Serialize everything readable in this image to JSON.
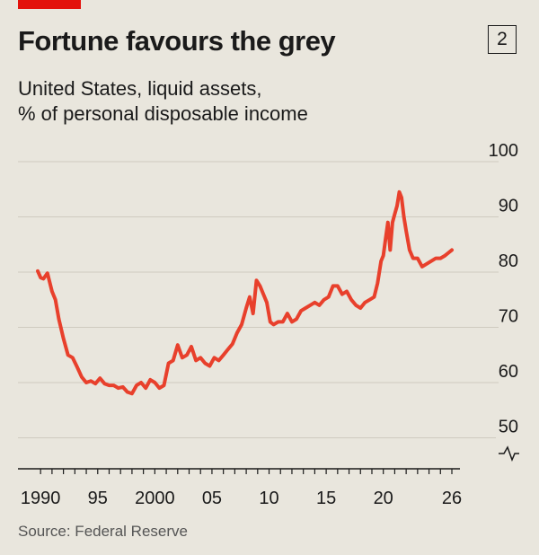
{
  "header": {
    "title": "Fortune favours the grey",
    "badge": "2",
    "subtitle_line1": "United States, liquid assets,",
    "subtitle_line2": "% of personal disposable income"
  },
  "footer": {
    "source": "Source: Federal Reserve"
  },
  "colors": {
    "accent": "#e3120b",
    "line": "#e8402c",
    "background": "#e9e6dd",
    "grid": "#cfcbc0"
  },
  "chart_data": {
    "type": "line",
    "title": "Fortune favours the grey",
    "subtitle": "United States, liquid assets, % of personal disposable income",
    "xlabel": "",
    "ylabel": "",
    "xlim": [
      1989.5,
      2026.3
    ],
    "ylim": [
      45,
      100
    ],
    "y_axis_break": true,
    "y_axis_side": "right",
    "grid": "horizontal",
    "yticks": [
      100,
      90,
      80,
      70,
      60,
      50
    ],
    "xticks": [
      {
        "value": 1990,
        "label": "1990"
      },
      {
        "value": 1995,
        "label": "95"
      },
      {
        "value": 2000,
        "label": "2000"
      },
      {
        "value": 2005,
        "label": "05"
      },
      {
        "value": 2010,
        "label": "10"
      },
      {
        "value": 2015,
        "label": "15"
      },
      {
        "value": 2020,
        "label": "20"
      },
      {
        "value": 2026,
        "label": "26"
      }
    ],
    "series": [
      {
        "x": [
          1989.75,
          1990.0,
          1990.25,
          1990.6,
          1991.0,
          1991.3,
          1991.6,
          1992.0,
          1992.4,
          1992.8,
          1993.2,
          1993.6,
          1994.0,
          1994.4,
          1994.8,
          1995.2,
          1995.6,
          1996.0,
          1996.4,
          1996.8,
          1997.2,
          1997.6,
          1998.0,
          1998.4,
          1998.8,
          1999.2,
          1999.6,
          2000.0,
          2000.4,
          2000.8,
          2001.2,
          2001.6,
          2002.0,
          2002.4,
          2002.8,
          2003.2,
          2003.6,
          2004.0,
          2004.4,
          2004.8,
          2005.2,
          2005.6,
          2006.0,
          2006.4,
          2006.8,
          2007.2,
          2007.6,
          2008.0,
          2008.3,
          2008.6,
          2008.9,
          2009.2,
          2009.5,
          2009.8,
          2010.1,
          2010.4,
          2010.8,
          2011.2,
          2011.6,
          2012.0,
          2012.4,
          2012.8,
          2013.2,
          2013.6,
          2014.0,
          2014.4,
          2014.8,
          2015.2,
          2015.6,
          2016.0,
          2016.4,
          2016.8,
          2017.2,
          2017.6,
          2018.0,
          2018.4,
          2018.8,
          2019.2,
          2019.5,
          2019.8,
          2020.0,
          2020.2,
          2020.4,
          2020.6,
          2020.8,
          2021.0,
          2021.2,
          2021.4,
          2021.6,
          2021.8,
          2022.0,
          2022.3,
          2022.6,
          2023.0,
          2023.4,
          2023.8,
          2024.2,
          2024.6,
          2025.0,
          2025.4,
          2025.7,
          2026.0
        ],
        "values": [
          80.2,
          79.0,
          78.8,
          79.8,
          76.5,
          75.0,
          71.5,
          68.0,
          65.0,
          64.5,
          62.8,
          61.0,
          60.0,
          60.3,
          59.8,
          60.8,
          59.8,
          59.5,
          59.5,
          59.0,
          59.2,
          58.3,
          58.0,
          59.5,
          60.0,
          59.0,
          60.5,
          60.0,
          59.0,
          59.5,
          63.5,
          64.0,
          66.8,
          64.5,
          65.0,
          66.5,
          64.0,
          64.5,
          63.5,
          63.0,
          64.5,
          64.0,
          65.0,
          66.0,
          67.0,
          69.0,
          70.5,
          73.5,
          75.5,
          72.5,
          78.5,
          77.5,
          76.0,
          74.5,
          71.0,
          70.5,
          71.0,
          71.0,
          72.5,
          71.0,
          71.5,
          73.0,
          73.5,
          74.0,
          74.5,
          74.0,
          75.0,
          75.5,
          77.5,
          77.5,
          76.0,
          76.5,
          75.0,
          74.0,
          73.5,
          74.5,
          75.0,
          75.5,
          78.0,
          82.0,
          83.0,
          86.0,
          89.0,
          84.0,
          89.0,
          90.5,
          92.0,
          94.5,
          93.5,
          90.0,
          87.5,
          84.0,
          82.5,
          82.5,
          81.0,
          81.5,
          82.0,
          82.5,
          82.5,
          83.0,
          83.5,
          84.0
        ]
      }
    ]
  }
}
